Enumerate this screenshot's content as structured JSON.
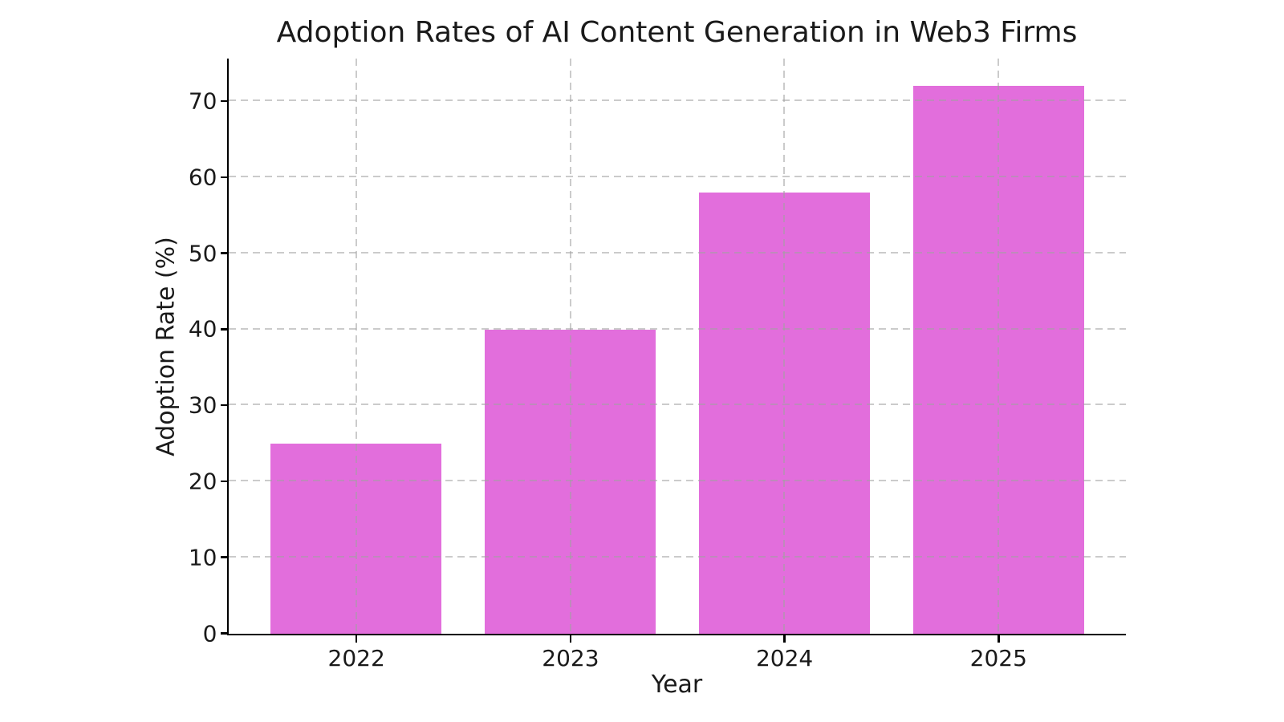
{
  "chart_data": {
    "type": "bar",
    "title": "Adoption Rates of AI Content Generation in Web3 Firms",
    "xlabel": "Year",
    "ylabel": "Adoption Rate (%)",
    "categories": [
      "2022",
      "2023",
      "2024",
      "2025"
    ],
    "values": [
      25,
      40,
      58,
      72
    ],
    "yticks": [
      0,
      10,
      20,
      30,
      40,
      50,
      60,
      70
    ],
    "ylim": [
      0,
      75.6
    ],
    "bar_color": "#e26edc",
    "grid": "dashed, light gray, horizontal and vertical, drawn over bars",
    "legend_position": "none",
    "background_color": "#ffffff",
    "text_color": "#1a1a1a",
    "spines": [
      "left",
      "bottom"
    ]
  }
}
